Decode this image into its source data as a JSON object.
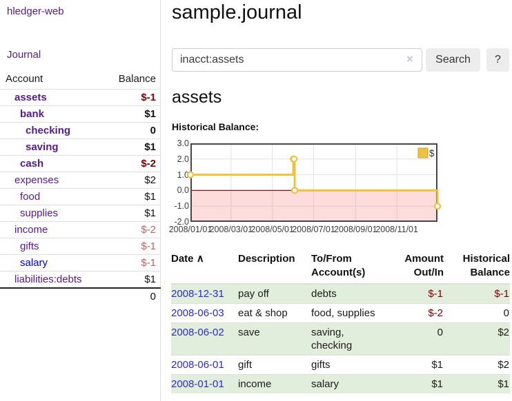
{
  "app": {
    "brand": "hledger-web",
    "nav": {
      "journal": "Journal"
    }
  },
  "sidebar": {
    "columns": {
      "account": "Account",
      "balance": "Balance"
    },
    "accounts": [
      {
        "name": "assets",
        "depth": 1,
        "balance": "$-1",
        "bold": true,
        "link_color": "purple",
        "balance_tone": "neg-strong"
      },
      {
        "name": "bank",
        "depth": 2,
        "balance": "$1",
        "bold": true,
        "link_color": "purple",
        "balance_tone": "pos"
      },
      {
        "name": "checking",
        "depth": 3,
        "balance": "0",
        "bold": true,
        "link_color": "purple",
        "balance_tone": "pos"
      },
      {
        "name": "saving",
        "depth": 3,
        "balance": "$1",
        "bold": true,
        "link_color": "purple",
        "balance_tone": "pos"
      },
      {
        "name": "cash",
        "depth": 2,
        "balance": "$-2",
        "bold": true,
        "link_color": "purple",
        "balance_tone": "neg-strong"
      },
      {
        "name": "expenses",
        "depth": 1,
        "balance": "$2",
        "bold": false,
        "link_color": "purple",
        "balance_tone": "pos"
      },
      {
        "name": "food",
        "depth": 2,
        "balance": "$1",
        "bold": false,
        "link_color": "purple",
        "balance_tone": "pos"
      },
      {
        "name": "supplies",
        "depth": 2,
        "balance": "$1",
        "bold": false,
        "link_color": "purple",
        "balance_tone": "pos"
      },
      {
        "name": "income",
        "depth": 1,
        "balance": "$-2",
        "bold": false,
        "link_color": "purple",
        "balance_tone": "neg-soft"
      },
      {
        "name": "gifts",
        "depth": 2,
        "balance": "$-1",
        "bold": false,
        "link_color": "purple",
        "balance_tone": "neg-soft"
      },
      {
        "name": "salary",
        "depth": 2,
        "balance": "$-1",
        "bold": false,
        "link_color": "blue",
        "balance_tone": "neg-soft"
      },
      {
        "name": "liabilities:debts",
        "depth": 1,
        "balance": "$1",
        "bold": false,
        "link_color": "purple",
        "balance_tone": "pos"
      }
    ],
    "total": "0"
  },
  "main": {
    "title": "sample.journal",
    "search": {
      "value": "inacct:assets",
      "clear_icon": "×",
      "button": "Search",
      "help_button": "?"
    },
    "account_heading": "assets",
    "chart_label": "Historical Balance:"
  },
  "chart_data": {
    "type": "line",
    "step": true,
    "title": "Historical Balance:",
    "series": [
      {
        "name": "$",
        "color": "#edc240",
        "points": [
          [
            "2008-01-01",
            1
          ],
          [
            "2008-06-01",
            2
          ],
          [
            "2008-06-02",
            2
          ],
          [
            "2008-06-03",
            0
          ],
          [
            "2008-12-31",
            -1
          ]
        ]
      }
    ],
    "x_range": [
      "2008-01-01",
      "2008-12-31"
    ],
    "x_ticks": [
      {
        "date": "2008-01-01",
        "label": "2008/01/01"
      },
      {
        "date": "2008-03-01",
        "label": "2008/03/01"
      },
      {
        "date": "2008-05-01",
        "label": "2008/05/01"
      },
      {
        "date": "2008-07-01",
        "label": "2008/07/01"
      },
      {
        "date": "2008-09-01",
        "label": "2008/09/01"
      },
      {
        "date": "2008-11-01",
        "label": "2008/11/01"
      }
    ],
    "y_ticks": [
      {
        "value": 3,
        "label": "3.0"
      },
      {
        "value": 2,
        "label": "2.0"
      },
      {
        "value": 1,
        "label": "1.0"
      },
      {
        "value": 0,
        "label": "0.0"
      },
      {
        "value": -1,
        "label": "-1.0"
      },
      {
        "value": -2,
        "label": "-2.0"
      }
    ],
    "ylim": [
      -2,
      3
    ],
    "legend": {
      "label": "$",
      "position": "top-right"
    },
    "grid": true,
    "colors": {
      "line": "#edc240",
      "marker_fill": "#ffffff",
      "negative_region_fill": "rgba(250,150,150,0.33)",
      "zero_line": "#801515",
      "grid_line": "#e0e0e0",
      "plot_border": "#454545",
      "legend_box_border": "#c9a32f"
    }
  },
  "register": {
    "headers": {
      "date": "Date",
      "sort_icon": "∧",
      "description": "Description",
      "tofrom_line1": "To/From",
      "tofrom_line2": "Account(s)",
      "amount_line1": "Amount",
      "amount_line2": "Out/In",
      "balance_line1": "Historical",
      "balance_line2": "Balance"
    },
    "rows": [
      {
        "date": "2008-12-31",
        "description": "pay off",
        "accounts": "debts",
        "amount": "$-1",
        "balance": "$-1",
        "amount_negative": true,
        "balance_negative": true,
        "shaded": true
      },
      {
        "date": "2008-06-03",
        "description": "eat & shop",
        "accounts": "food, supplies",
        "amount": "$-2",
        "balance": "0",
        "amount_negative": true,
        "balance_negative": false,
        "shaded": false
      },
      {
        "date": "2008-06-02",
        "description": "save",
        "accounts": "saving, checking",
        "amount": "0",
        "balance": "$2",
        "amount_negative": false,
        "balance_negative": false,
        "shaded": true
      },
      {
        "date": "2008-06-01",
        "description": "gift",
        "accounts": "gifts",
        "amount": "$1",
        "balance": "$2",
        "amount_negative": false,
        "balance_negative": false,
        "shaded": false
      },
      {
        "date": "2008-01-01",
        "description": "income",
        "accounts": "salary",
        "amount": "$1",
        "balance": "$1",
        "amount_negative": false,
        "balance_negative": false,
        "shaded": true
      }
    ]
  }
}
